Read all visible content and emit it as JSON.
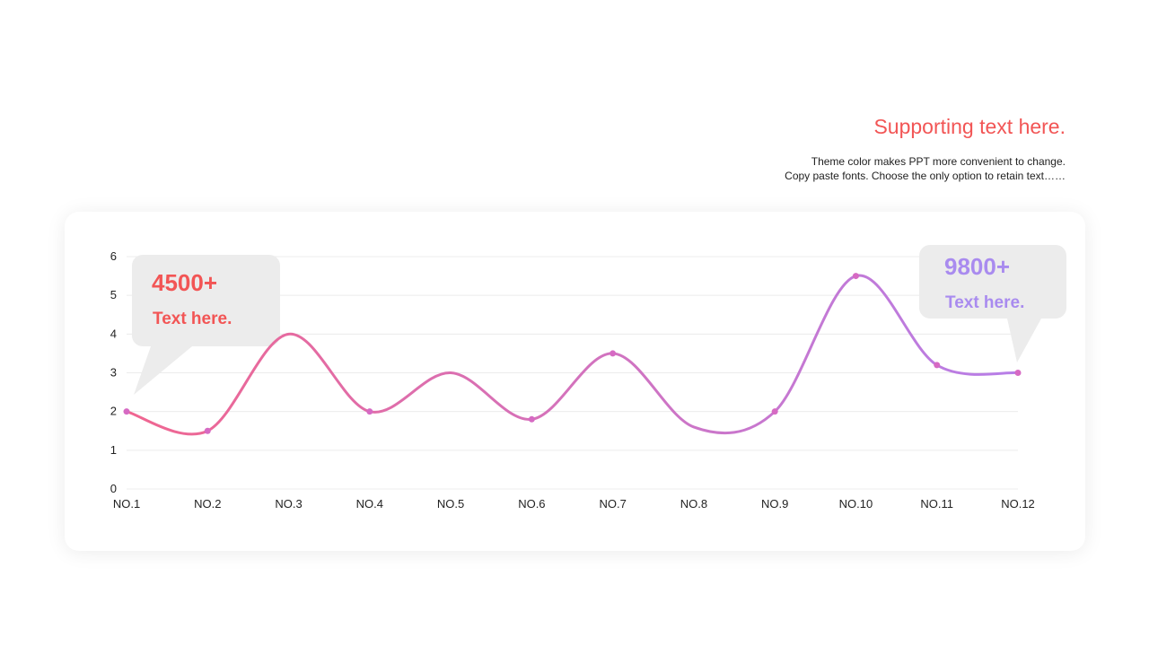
{
  "header": {
    "title": "Supporting text here.",
    "lines": [
      "Theme color makes PPT more convenient to change.",
      "Copy paste fonts. Choose the only option to retain text……"
    ]
  },
  "colors": {
    "accent_red": "#f25555",
    "accent_purple": "#a98bef",
    "line_start": "#f06690",
    "line_end": "#b77ee8",
    "point": "#d66ac3",
    "callout_bg": "#ececec",
    "grid": "#ececec"
  },
  "callouts": {
    "left": {
      "value": "4500+",
      "text": "Text here."
    },
    "right": {
      "value": "9800+",
      "text": "Text here."
    }
  },
  "chart_data": {
    "type": "line",
    "smooth": true,
    "categories": [
      "NO.1",
      "NO.2",
      "NO.3",
      "NO.4",
      "NO.5",
      "NO.6",
      "NO.7",
      "NO.8",
      "NO.9",
      "NO.10",
      "NO.11",
      "NO.12"
    ],
    "series": [
      {
        "values": [
          2,
          1.5,
          4,
          2,
          3,
          1.8,
          3.5,
          1.6,
          2,
          5.5,
          3.2,
          3
        ],
        "markers": [
          true,
          true,
          false,
          true,
          false,
          true,
          true,
          false,
          true,
          true,
          true,
          true
        ]
      }
    ],
    "yticks": [
      0,
      1,
      2,
      3,
      4,
      5,
      6
    ],
    "ylim": [
      0,
      6
    ],
    "grid": true,
    "title": "",
    "xlabel": "",
    "ylabel": ""
  }
}
